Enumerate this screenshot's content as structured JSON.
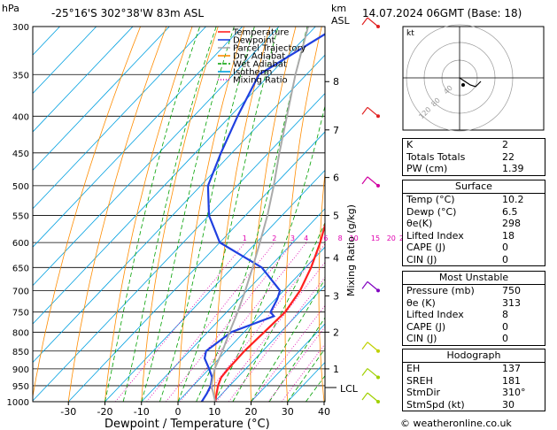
{
  "header": {
    "hpa_label": "hPa",
    "location": "-25°16'S  302°38'W  83m  ASL",
    "km_label": "km",
    "asl_label": "ASL",
    "datetime": "14.07.2024  06GMT  (Base: 18)"
  },
  "axes": {
    "xlabel": "Dewpoint / Temperature (°C)",
    "right_label": "Mixing Ratio (g/kg)",
    "lcl_label": "LCL",
    "hodo_unit": "kt"
  },
  "legend": [
    {
      "name": "Temperature",
      "color": "#ff2020"
    },
    {
      "name": "Dewpoint",
      "color": "#2040e0"
    },
    {
      "name": "Parcel Trajectory",
      "color": "#aaaaaa"
    },
    {
      "name": "Dry Adiabat",
      "color": "#ff8c00"
    },
    {
      "name": "Wet Adiabat",
      "color": "#00a000"
    },
    {
      "name": "Isotherm",
      "color": "#00a0e0"
    },
    {
      "name": "Mixing Ratio",
      "color": "#e000b0"
    }
  ],
  "chart_data": {
    "type": "line",
    "pressure_ticks": [
      300,
      350,
      400,
      450,
      500,
      550,
      600,
      650,
      700,
      750,
      800,
      850,
      900,
      950,
      1000
    ],
    "x_ticks": [
      -30,
      -20,
      -10,
      0,
      10,
      20,
      30,
      40
    ],
    "xlim": [
      -40,
      40
    ],
    "ylim": [
      1000,
      300
    ],
    "km_ticks": [
      {
        "label": "8",
        "p": 358
      },
      {
        "label": "7",
        "p": 418
      },
      {
        "label": "6",
        "p": 487
      },
      {
        "label": "5",
        "p": 550
      },
      {
        "label": "4",
        "p": 630
      },
      {
        "label": "3",
        "p": 712
      },
      {
        "label": "2",
        "p": 800
      },
      {
        "label": "1",
        "p": 900
      }
    ],
    "mixing_ratio_labels": [
      "1",
      "2",
      "3",
      "4",
      "6",
      "8",
      "10",
      "15",
      "20",
      "25"
    ],
    "series": [
      {
        "name": "Temperature",
        "color": "#ff2020",
        "p": [
          1000,
          975,
          950,
          925,
          900,
          850,
          800,
          750,
          700,
          650,
          600,
          550,
          500,
          450,
          400,
          350,
          300
        ],
        "t": [
          10.2,
          8.5,
          6.8,
          5.5,
          5.2,
          5.0,
          5.5,
          6.0,
          4.5,
          1.5,
          -2.5,
          -7.5,
          -12.5,
          -18.0,
          -24.5,
          -32.5,
          -42.0
        ]
      },
      {
        "name": "Dewpoint",
        "color": "#2040e0",
        "p": [
          1000,
          975,
          950,
          925,
          900,
          870,
          850,
          800,
          760,
          750,
          720,
          700,
          650,
          600,
          550,
          500,
          450,
          400,
          350,
          300
        ],
        "t": [
          6.5,
          5.8,
          4.8,
          3.0,
          0.0,
          -4.0,
          -5.5,
          -3.5,
          4.0,
          2.0,
          0.5,
          -1.0,
          -12.0,
          -30.0,
          -40.0,
          -48.0,
          -53.0,
          -58.0,
          -63.0,
          -54.0
        ]
      },
      {
        "name": "Parcel Trajectory",
        "color": "#aaaaaa",
        "p": [
          1000,
          950,
          900,
          850,
          800,
          750,
          700,
          650,
          600,
          550,
          500,
          450,
          400,
          350,
          300
        ],
        "t": [
          10.2,
          5.0,
          1.5,
          -1.0,
          -4.0,
          -7.0,
          -10.5,
          -14.5,
          -19.0,
          -24.0,
          -30.0,
          -37.0,
          -44.5,
          -53.0,
          -62.0
        ]
      }
    ]
  },
  "indices": [
    {
      "label": "K",
      "value": "2"
    },
    {
      "label": "Totals Totals",
      "value": "22"
    },
    {
      "label": "PW (cm)",
      "value": "1.39"
    }
  ],
  "surface": {
    "title": "Surface",
    "rows": [
      {
        "label": "Temp (°C)",
        "value": "10.2"
      },
      {
        "label": "Dewp (°C)",
        "value": "6.5"
      },
      {
        "label": "θe(K)",
        "value": "298"
      },
      {
        "label": "Lifted Index",
        "value": "18"
      },
      {
        "label": "CAPE (J)",
        "value": "0"
      },
      {
        "label": "CIN (J)",
        "value": "0"
      }
    ]
  },
  "most_unstable": {
    "title": "Most Unstable",
    "rows": [
      {
        "label": "Pressure (mb)",
        "value": "750"
      },
      {
        "label": "θe (K)",
        "value": "313"
      },
      {
        "label": "Lifted Index",
        "value": "8"
      },
      {
        "label": "CAPE (J)",
        "value": "0"
      },
      {
        "label": "CIN (J)",
        "value": "0"
      }
    ]
  },
  "hodograph": {
    "title": "Hodograph",
    "rows": [
      {
        "label": "EH",
        "value": "137"
      },
      {
        "label": "SREH",
        "value": "181"
      },
      {
        "label": "StmDir",
        "value": "310°"
      },
      {
        "label": "StmSpd (kt)",
        "value": "30"
      }
    ],
    "ring_labels": [
      "40",
      "80",
      "120"
    ]
  },
  "copyright": "© weatheronline.co.uk"
}
